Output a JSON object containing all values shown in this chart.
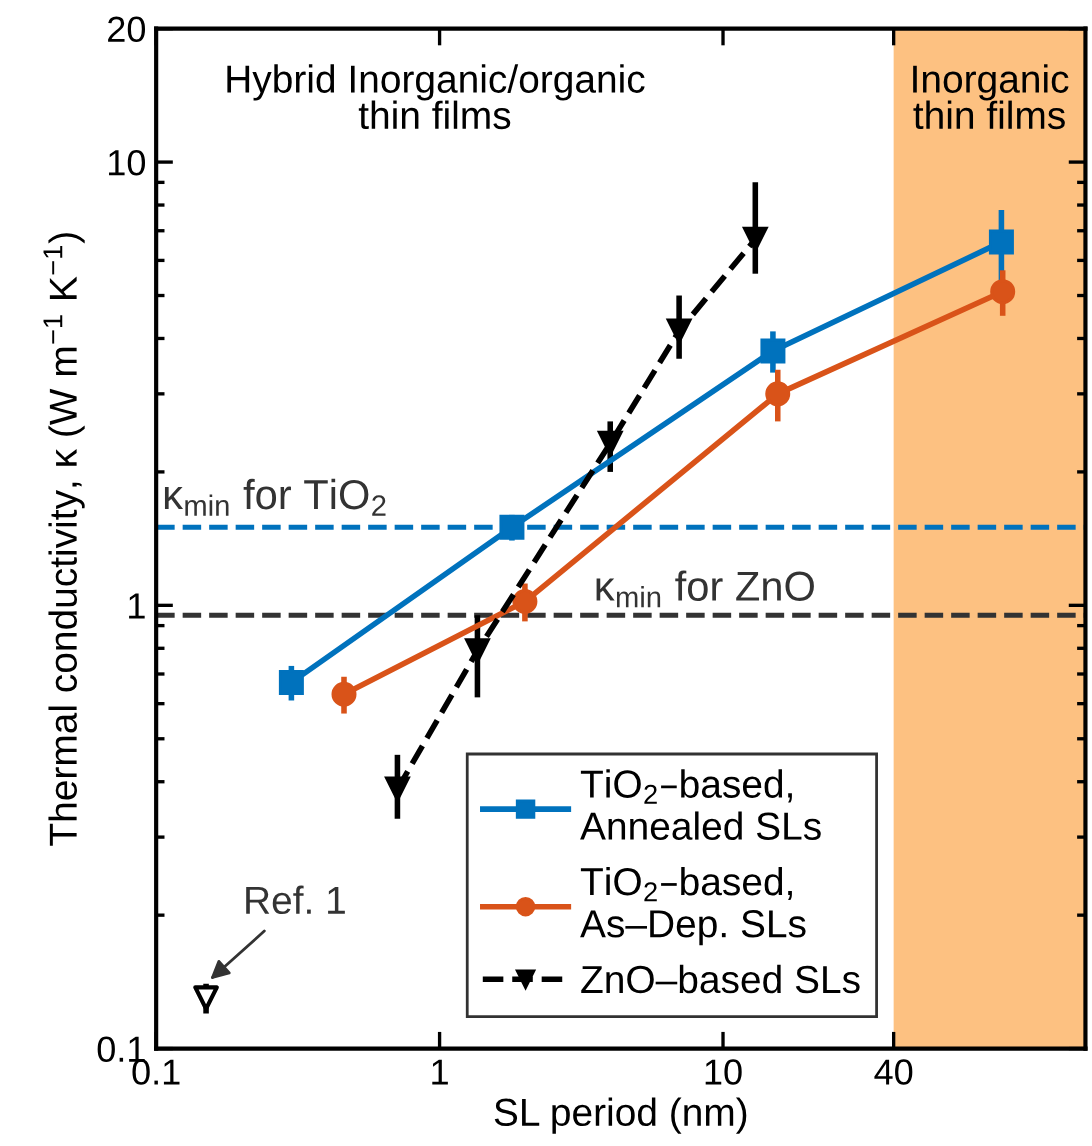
{
  "chart_data": {
    "type": "line",
    "xlabel": "SL period (nm)",
    "ylabel": "Thermal conductivity, κ (W m$^{−1}$ K$^{−1}$)",
    "log": "xy",
    "xlim": [
      0.1,
      190
    ],
    "ylim": [
      0.1,
      20
    ],
    "xticks": [
      0.1,
      1,
      10,
      40
    ],
    "yticks": [
      0.1,
      1,
      10,
      20
    ],
    "grid": false,
    "legend": "bottom",
    "series": [
      {
        "name": "TiO$_{2}$–based,\nAnnealed SLs",
        "color": "#0072bd",
        "marker": "square",
        "line_style": "solid",
        "x": [
          0.3,
          1.8,
          15,
          96
        ],
        "values": [
          0.67,
          1.5,
          3.75,
          6.6
        ],
        "errors": [
          0.06,
          0.1,
          0.4,
          1.2
        ]
      },
      {
        "name": "TiO$_{2}$–based,\nAs–Dep. SLs",
        "color": "#d95319",
        "marker": "circle",
        "line_style": "solid",
        "x": [
          0.46,
          2.0,
          15.6,
          97
        ],
        "values": [
          0.63,
          1.02,
          3.0,
          5.1
        ],
        "errors": [
          0.06,
          0.1,
          0.4,
          0.6
        ]
      },
      {
        "name": "ZnO–based SLs",
        "color": "#000000",
        "marker": "triangle",
        "line_style": "dashed",
        "x": [
          0.71,
          1.36,
          4.0,
          7.0,
          13
        ],
        "values": [
          0.385,
          0.79,
          2.32,
          4.16,
          6.7
        ],
        "errors": [
          [
            0.33,
            0.46
          ],
          [
            0.62,
            0.95
          ],
          [
            2.0,
            2.6
          ],
          [
            3.6,
            5.0
          ],
          [
            5.6,
            9.0
          ]
        ]
      },
      {
        "type": "scatter",
        "color": "#000000",
        "marker": "triangle",
        "x": [
          0.15
        ],
        "values": [
          0.13
        ],
        "errors": [
          [
            0.12,
            0.14
          ]
        ]
      }
    ],
    "ref_lines": [
      {
        "axis": "y",
        "value": 1.5,
        "label": "κ$_{min}$ for TiO$_{2}$",
        "color": "#0072bd",
        "line_style": "dashed"
      },
      {
        "axis": "y",
        "value": 0.95,
        "label": "κ$_{min}$ for ZnO",
        "color": "#333333",
        "line_style": "dashed"
      }
    ],
    "bands": [
      {
        "axis": "x",
        "from": 40,
        "to": 190,
        "label": "Inorganic\nthin films",
        "color": "#fdb66b"
      }
    ],
    "annotations": [
      "Hybrid Inorganic/organic\nthin films",
      {
        "text": "Ref. 1",
        "x": 0.15,
        "y": 0.13
      }
    ]
  }
}
